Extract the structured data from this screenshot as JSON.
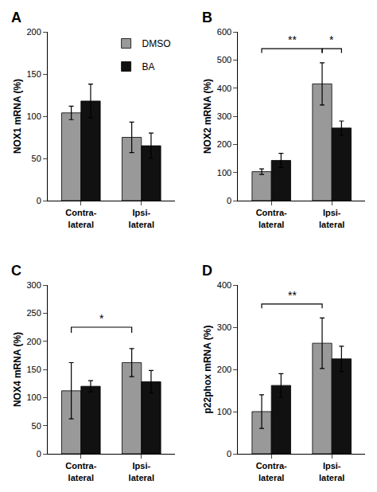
{
  "chart_data": [
    {
      "type": "bar",
      "title": "A",
      "ylabel": "NOX1 mRNA (%)",
      "categories": [
        "Contra-\nlateral",
        "Ipsi-\nlateral"
      ],
      "series": [
        {
          "name": "DMSO",
          "color": "#999999",
          "values": [
            104,
            75
          ],
          "errors": [
            8,
            18
          ]
        },
        {
          "name": "BA",
          "color": "#111111",
          "values": [
            118,
            65
          ],
          "errors": [
            20,
            15
          ]
        }
      ],
      "ylim": [
        0,
        200
      ],
      "yticks": [
        0,
        50,
        100,
        150,
        200
      ],
      "grid": false,
      "legend": "upper right",
      "annotations": []
    },
    {
      "type": "bar",
      "title": "B",
      "ylabel": "NOX2 mRNA (%)",
      "categories": [
        "Contra-\nlateral",
        "Ipsi-\nlateral"
      ],
      "series": [
        {
          "name": "DMSO",
          "color": "#999999",
          "values": [
            103,
            415
          ],
          "errors": [
            10,
            75
          ]
        },
        {
          "name": "BA",
          "color": "#111111",
          "values": [
            143,
            258
          ],
          "errors": [
            25,
            25
          ]
        }
      ],
      "ylim": [
        0,
        600
      ],
      "yticks": [
        0,
        100,
        200,
        300,
        400,
        500,
        600
      ],
      "grid": false,
      "annotations": [
        {
          "text": "**",
          "from": [
            "Contra-\nlateral",
            "DMSO"
          ],
          "to": [
            "Ipsi-\nlateral",
            "DMSO"
          ],
          "y": 540,
          "tick_height": 15
        },
        {
          "text": "*",
          "from": [
            "Ipsi-\nlateral",
            "DMSO"
          ],
          "to": [
            "Ipsi-\nlateral",
            "BA"
          ],
          "y": 540,
          "tick_height": 15
        }
      ]
    },
    {
      "type": "bar",
      "title": "C",
      "ylabel": "NOX4 mRNA (%)",
      "categories": [
        "Contra-\nlateral",
        "Ipsi-\nlateral"
      ],
      "series": [
        {
          "name": "DMSO",
          "color": "#999999",
          "values": [
            112,
            162
          ],
          "errors": [
            50,
            25
          ]
        },
        {
          "name": "BA",
          "color": "#111111",
          "values": [
            120,
            128
          ],
          "errors": [
            10,
            20
          ]
        }
      ],
      "ylim": [
        0,
        300
      ],
      "yticks": [
        0,
        50,
        100,
        150,
        200,
        250,
        300
      ],
      "grid": false,
      "annotations": [
        {
          "text": "*",
          "from": [
            "Contra-\nlateral",
            "DMSO"
          ],
          "to": [
            "Ipsi-\nlateral",
            "DMSO"
          ],
          "y": 225,
          "tick_height": 10
        }
      ]
    },
    {
      "type": "bar",
      "title": "D",
      "ylabel": "p22phox mRNA (%)",
      "categories": [
        "Contra-\nlateral",
        "Ipsi-\nlateral"
      ],
      "series": [
        {
          "name": "DMSO",
          "color": "#999999",
          "values": [
            100,
            262
          ],
          "errors": [
            40,
            60
          ]
        },
        {
          "name": "BA",
          "color": "#111111",
          "values": [
            162,
            225
          ],
          "errors": [
            28,
            30
          ]
        }
      ],
      "ylim": [
        0,
        400
      ],
      "yticks": [
        0,
        100,
        200,
        300,
        400
      ],
      "grid": false,
      "annotations": [
        {
          "text": "**",
          "from": [
            "Contra-\nlateral",
            "DMSO"
          ],
          "to": [
            "Ipsi-\nlateral",
            "DMSO"
          ],
          "y": 355,
          "tick_height": 10
        }
      ]
    }
  ]
}
